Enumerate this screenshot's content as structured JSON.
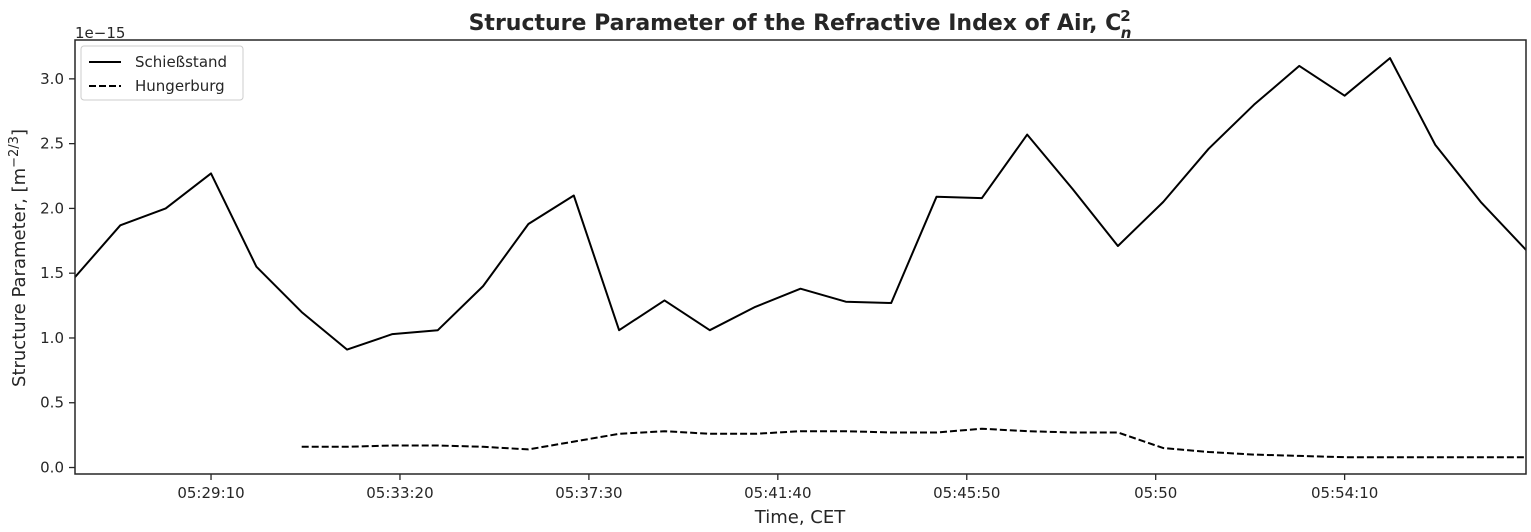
{
  "chart_data": {
    "type": "line",
    "title": "Structure Parameter of the Refractive Index of Air, C",
    "title_sub": "n",
    "title_sup": "2",
    "xlabel": "Time, CET",
    "ylabel_main": "Structure Parameter, [m",
    "ylabel_exp": "−2/3",
    "ylabel_close": "]",
    "offset_text": "1e−15",
    "x_ticks": [
      "05:29:10",
      "05:33:20",
      "05:37:30",
      "05:41:40",
      "05:45:50",
      "05:50",
      "05:54:10"
    ],
    "y_ticks": [
      "0.0",
      "0.5",
      "1.0",
      "1.5",
      "2.0",
      "2.5",
      "3.0"
    ],
    "ylim": [
      -0.05,
      3.3
    ],
    "grid": false,
    "legend_position": "top-left",
    "series": [
      {
        "name": "Schießstand",
        "style": "solid",
        "color": "#000000",
        "x": [
          "05:26:10",
          "05:27:10",
          "05:28:10",
          "05:29:10",
          "05:30:10",
          "05:31:10",
          "05:32:10",
          "05:33:10",
          "05:34:10",
          "05:35:10",
          "05:36:10",
          "05:37:10",
          "05:38:10",
          "05:39:10",
          "05:40:10",
          "05:41:10",
          "05:42:10",
          "05:43:10",
          "05:44:10",
          "05:45:10",
          "05:46:10",
          "05:47:10",
          "05:48:10",
          "05:49:10",
          "05:50:10",
          "05:51:10",
          "05:52:10",
          "05:53:10",
          "05:54:10",
          "05:55:10",
          "05:56:10",
          "05:57:10",
          "05:58:10"
        ],
        "values": [
          1.47,
          1.87,
          2.0,
          2.27,
          1.55,
          1.2,
          0.91,
          1.03,
          1.06,
          1.4,
          1.88,
          2.1,
          1.06,
          1.29,
          1.06,
          1.24,
          1.38,
          1.28,
          1.27,
          2.09,
          2.08,
          2.57,
          2.15,
          1.71,
          2.05,
          2.46,
          2.8,
          3.1,
          2.87,
          3.16,
          2.49,
          2.05,
          1.68
        ]
      },
      {
        "name": "Hungerburg",
        "style": "dashed",
        "color": "#000000",
        "x": [
          "05:31:10",
          "05:32:10",
          "05:33:10",
          "05:34:10",
          "05:35:10",
          "05:36:10",
          "05:37:10",
          "05:38:10",
          "05:39:10",
          "05:40:10",
          "05:41:10",
          "05:42:10",
          "05:43:10",
          "05:44:10",
          "05:45:10",
          "05:46:10",
          "05:47:10",
          "05:48:10",
          "05:49:10",
          "05:50:10",
          "05:51:10",
          "05:52:10",
          "05:53:10",
          "05:54:10",
          "05:55:10",
          "05:56:10",
          "05:57:10",
          "05:58:10"
        ],
        "values": [
          0.16,
          0.16,
          0.17,
          0.17,
          0.16,
          0.14,
          0.2,
          0.26,
          0.28,
          0.26,
          0.26,
          0.28,
          0.28,
          0.27,
          0.27,
          0.3,
          0.28,
          0.27,
          0.27,
          0.15,
          0.12,
          0.1,
          0.09,
          0.08,
          0.08,
          0.08,
          0.08,
          0.08
        ]
      }
    ]
  }
}
